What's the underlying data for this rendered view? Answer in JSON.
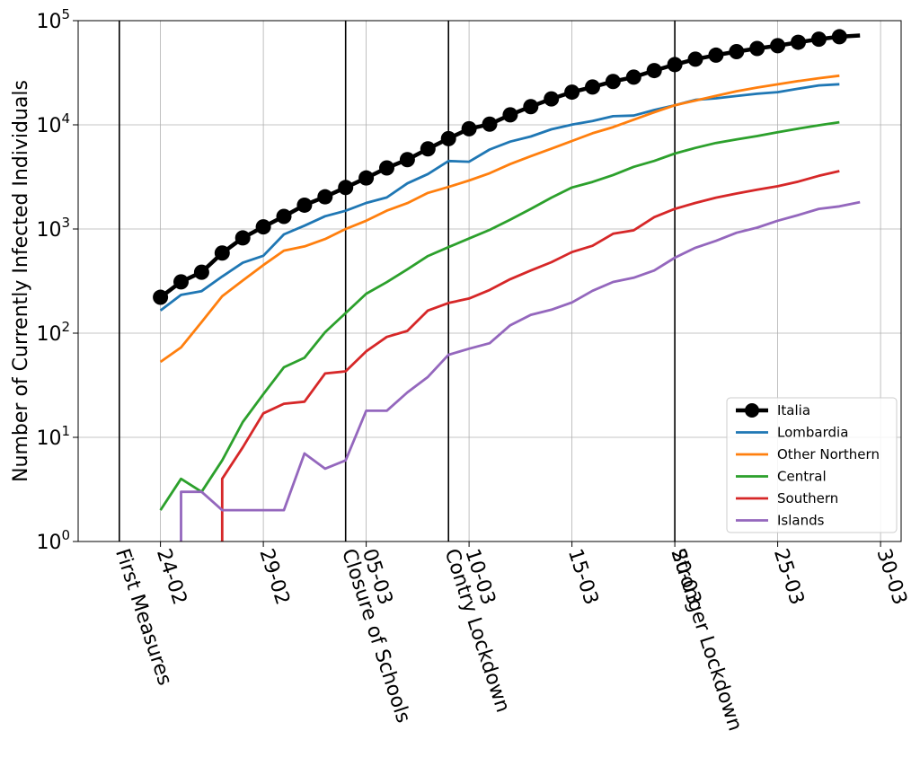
{
  "chart_data": {
    "type": "line",
    "ylabel": "Number of Currently Infected Individuals",
    "xlabel": "",
    "yscale": "log",
    "ylim": [
      1,
      100000
    ],
    "xlim": [
      "2020-02-20",
      "2020-03-31"
    ],
    "grid": true,
    "legend_position": "lower-right",
    "x_ticks": [
      {
        "label": "24-02",
        "date": "2020-02-24"
      },
      {
        "label": "29-02",
        "date": "2020-02-29"
      },
      {
        "label": "05-03",
        "date": "2020-03-05"
      },
      {
        "label": "10-03",
        "date": "2020-03-10"
      },
      {
        "label": "15-03",
        "date": "2020-03-15"
      },
      {
        "label": "20-03",
        "date": "2020-03-20"
      },
      {
        "label": "25-03",
        "date": "2020-03-25"
      },
      {
        "label": "30-03",
        "date": "2020-03-30"
      }
    ],
    "y_ticks": [
      {
        "base": "10",
        "exp": "0",
        "value": 1
      },
      {
        "base": "10",
        "exp": "1",
        "value": 10
      },
      {
        "base": "10",
        "exp": "2",
        "value": 100
      },
      {
        "base": "10",
        "exp": "3",
        "value": 1000
      },
      {
        "base": "10",
        "exp": "4",
        "value": 10000
      },
      {
        "base": "10",
        "exp": "5",
        "value": 100000
      }
    ],
    "events": [
      {
        "label": "First Measures",
        "date": "2020-02-22"
      },
      {
        "label": "Closure of Schools",
        "date": "2020-03-04"
      },
      {
        "label": "Contry Lockdown",
        "date": "2020-03-09"
      },
      {
        "label": "Stronger Lockdown",
        "date": "2020-03-20"
      }
    ],
    "series": [
      {
        "name": "Italia",
        "color": "#000000",
        "marker": "circle",
        "start_date": "2020-02-24",
        "values": [
          221,
          311,
          385,
          588,
          821,
          1049,
          1320,
          1694,
          2036,
          2502,
          3089,
          3858,
          4636,
          5883,
          7375,
          9172,
          10149,
          12462,
          14955,
          17750,
          20603,
          23073,
          26062,
          28710,
          33190,
          37860,
          42681,
          46638,
          50418,
          54030,
          57521,
          62013,
          66414,
          70065
        ],
        "extension": [
          {
            "date": "2020-03-29",
            "value": 72000
          }
        ]
      },
      {
        "name": "Lombardia",
        "color": "#1f77b4",
        "start_date": "2020-02-24",
        "values": [
          165,
          233,
          253,
          350,
          474,
          554,
          887,
          1077,
          1326,
          1497,
          1777,
          2008,
          2742,
          3372,
          4490,
          4427,
          5791,
          6896,
          7732,
          9059,
          10043,
          10861,
          12095,
          12266,
          13882,
          15420,
          17370,
          17954,
          18910,
          19873,
          20591,
          22189,
          23895,
          24509
        ]
      },
      {
        "name": "Other Northern",
        "color": "#ff7f0e",
        "start_date": "2020-02-24",
        "values": [
          53,
          73,
          128,
          226,
          320,
          450,
          620,
          680,
          800,
          1000,
          1200,
          1500,
          1770,
          2220,
          2530,
          2920,
          3430,
          4200,
          5000,
          5900,
          7000,
          8300,
          9500,
          11200,
          13200,
          15400,
          17100,
          19000,
          21000,
          22800,
          24500,
          26300,
          28000,
          29600
        ]
      },
      {
        "name": "Central",
        "color": "#2ca02c",
        "start_date": "2020-02-24",
        "values": [
          2,
          4,
          3,
          6,
          14,
          26,
          47,
          58,
          102,
          156,
          239,
          309,
          410,
          550,
          670,
          810,
          980,
          1230,
          1560,
          2000,
          2500,
          2830,
          3300,
          3950,
          4500,
          5300,
          6000,
          6700,
          7250,
          7800,
          8500,
          9200,
          9900,
          10600
        ]
      },
      {
        "name": "Southern",
        "color": "#d62728",
        "start_date": "2020-02-27",
        "start_from": 1,
        "values": [
          4,
          8,
          17,
          21,
          22,
          41,
          43,
          67,
          92,
          105,
          165,
          195,
          215,
          260,
          330,
          400,
          480,
          600,
          690,
          900,
          970,
          1300,
          1560,
          1780,
          2000,
          2190,
          2380,
          2570,
          2850,
          3240,
          3600
        ]
      },
      {
        "name": "Islands",
        "color": "#9467bd",
        "start_date": "2020-02-25",
        "start_from": 1,
        "values": [
          3,
          3,
          2,
          2,
          2,
          2,
          7,
          5,
          6,
          18,
          18,
          27,
          38,
          62,
          71,
          80,
          119,
          150,
          168,
          197,
          255,
          310,
          340,
          400,
          530,
          660,
          770,
          920,
          1030,
          1200,
          1360,
          1560,
          1650,
          1810
        ]
      }
    ]
  }
}
